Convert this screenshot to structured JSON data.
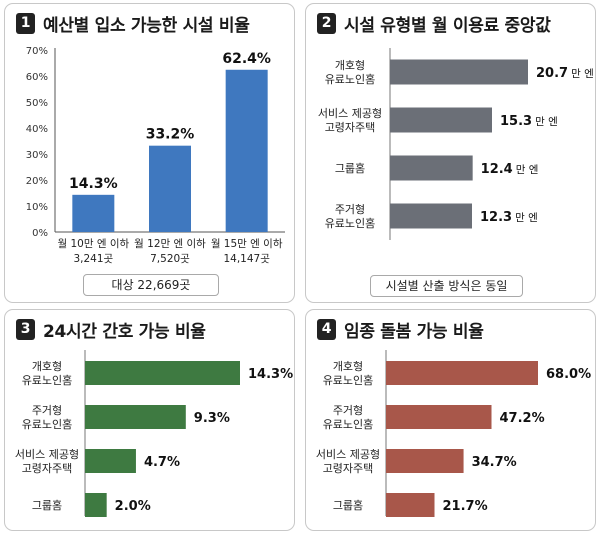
{
  "colors": {
    "blue": "#3f78bf",
    "gray": "#6b6f77",
    "green": "#3e7a41",
    "brown": "#a8574a"
  },
  "panel1": {
    "number": "1",
    "title": "예산별 입소 가능한 시설 비율",
    "note": "대상 22,669곳"
  },
  "panel2": {
    "number": "2",
    "title": "시설 유형별 월 이용료 중앙값",
    "note": "시설별 산출 방식은 동일"
  },
  "panel3": {
    "number": "3",
    "title": "24시간 간호 가능 비율"
  },
  "panel4": {
    "number": "4",
    "title": "임종 돌봄 가능 비율"
  },
  "chart_data": [
    {
      "type": "bar",
      "title": "예산별 입소 가능한 시설 비율",
      "categories": [
        [
          "월 10만 엔 이하",
          "3,241곳"
        ],
        [
          "월 12만 엔 이하",
          "7,520곳"
        ],
        [
          "월 15만 엔 이하",
          "14,147곳"
        ]
      ],
      "values": [
        14.3,
        33.2,
        62.4
      ],
      "value_labels": [
        "14.3%",
        "33.2%",
        "62.4%"
      ],
      "yticks": [
        "0%",
        "10%",
        "20%",
        "30%",
        "40%",
        "50%",
        "60%",
        "70%"
      ],
      "ylim": [
        0,
        70
      ],
      "grid": false
    },
    {
      "type": "bar",
      "orientation": "horizontal",
      "title": "시설 유형별 월 이용료 중앙값",
      "categories": [
        [
          "개호형",
          "유료노인홈"
        ],
        [
          "서비스 제공형",
          "고령자주택"
        ],
        [
          "그룹홈"
        ],
        [
          "주거형",
          "유료노인홈"
        ]
      ],
      "values": [
        20.7,
        15.3,
        12.4,
        12.3
      ],
      "value_labels": [
        "20.7",
        "15.3",
        "12.4",
        "12.3"
      ],
      "unit": "만 엔"
    },
    {
      "type": "bar",
      "orientation": "horizontal",
      "title": "24시간 간호 가능 비율",
      "categories": [
        [
          "개호형",
          "유료노인홈"
        ],
        [
          "주거형",
          "유료노인홈"
        ],
        [
          "서비스 제공형",
          "고령자주택"
        ],
        [
          "그룹홈"
        ]
      ],
      "values": [
        14.3,
        9.3,
        4.7,
        2.0
      ],
      "value_labels": [
        "14.3%",
        "9.3%",
        "4.7%",
        "2.0%"
      ]
    },
    {
      "type": "bar",
      "orientation": "horizontal",
      "title": "임종 돌봄 가능 비율",
      "categories": [
        [
          "개호형",
          "유료노인홈"
        ],
        [
          "주거형",
          "유료노인홈"
        ],
        [
          "서비스 제공형",
          "고령자주택"
        ],
        [
          "그룹홈"
        ]
      ],
      "values": [
        68.0,
        47.2,
        34.7,
        21.7
      ],
      "value_labels": [
        "68.0%",
        "47.2%",
        "34.7%",
        "21.7%"
      ]
    }
  ]
}
